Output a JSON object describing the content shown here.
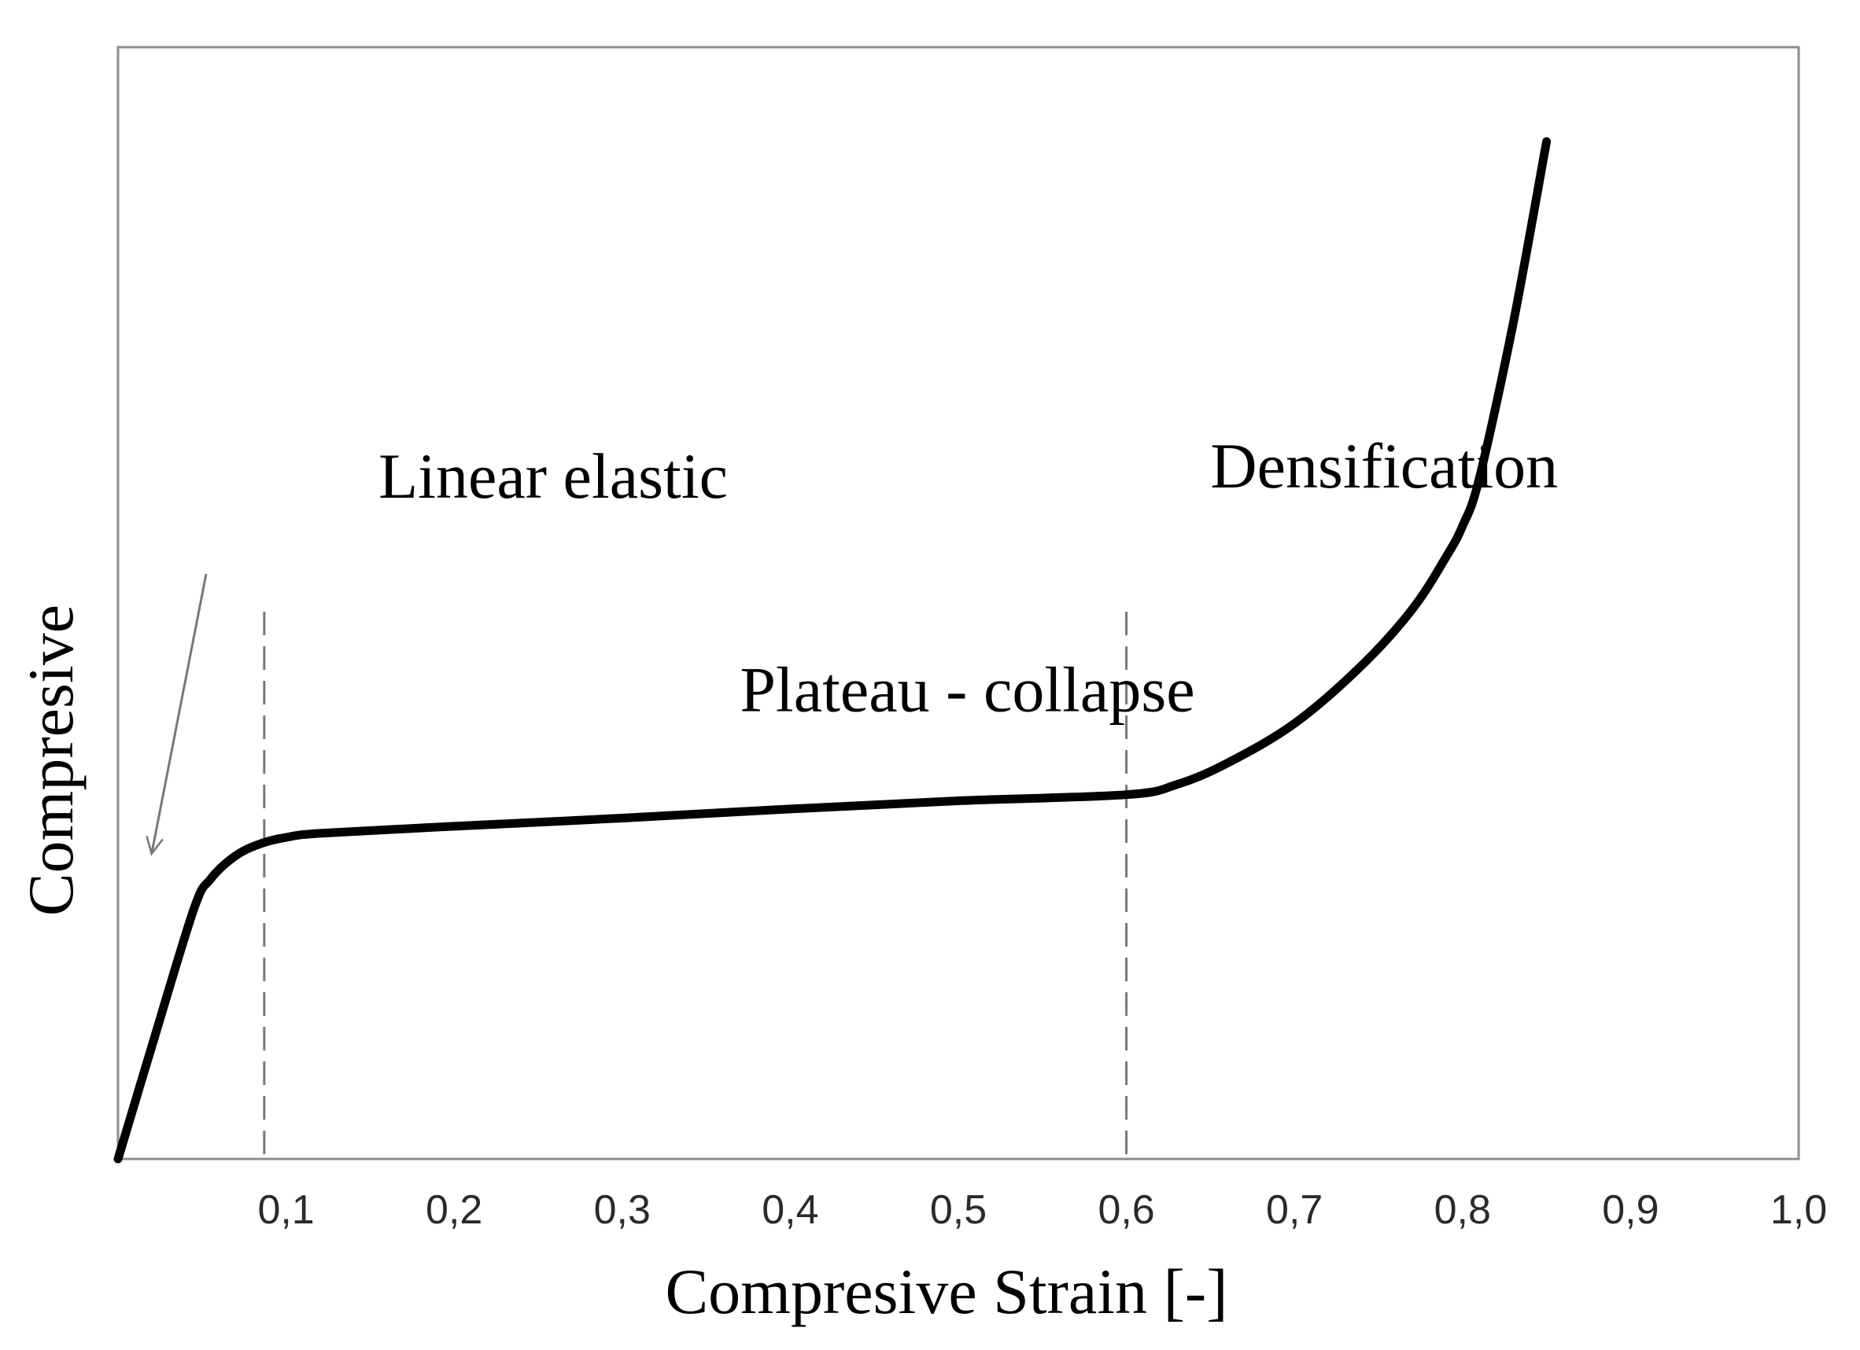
{
  "chart_data": {
    "type": "line",
    "title": "",
    "xlabel": "Compresive Strain [-]",
    "ylabel": "Compresive",
    "xlim": [
      0.0,
      1.0
    ],
    "ylim": [
      0,
      100
    ],
    "x_ticks": [
      "0,1",
      "0,2",
      "0,3",
      "0,4",
      "0,5",
      "0,6",
      "0,7",
      "0,8",
      "0,9",
      "1,0"
    ],
    "x_tick_values": [
      0.1,
      0.2,
      0.3,
      0.4,
      0.5,
      0.6,
      0.7,
      0.8,
      0.9,
      1.0
    ],
    "grid": false,
    "y_ticks_shown": false,
    "series": [
      {
        "color": "#000000",
        "x": [
          0.0,
          0.02,
          0.045,
          0.055,
          0.07,
          0.085,
          0.1,
          0.12,
          0.2,
          0.3,
          0.4,
          0.5,
          0.6,
          0.63,
          0.66,
          0.7,
          0.74,
          0.77,
          0.79,
          0.8,
          0.81,
          0.83,
          0.85
        ],
        "y": [
          0.0,
          11.0,
          24.5,
          27.5,
          29.8,
          31.0,
          31.6,
          32.0,
          32.7,
          33.5,
          34.4,
          35.2,
          35.8,
          36.8,
          38.9,
          42.8,
          48.5,
          54.0,
          59.1,
          62.2,
          66.9,
          82.0,
          100.0
        ]
      }
    ],
    "reference_lines": [
      {
        "axis": "x",
        "value": 0.087,
        "style": "dashed",
        "color": "#777777"
      },
      {
        "axis": "x",
        "value": 0.6,
        "style": "dashed",
        "color": "#777777"
      }
    ],
    "annotations": [
      {
        "text": "Linear elastic",
        "x": 0.155,
        "y": 65,
        "arrow_to": [
          0.02,
          30
        ]
      },
      {
        "text": "Plateau - collapse",
        "x": 0.37,
        "y": 44
      },
      {
        "text": "Densification",
        "x": 0.65,
        "y": 66
      }
    ]
  }
}
